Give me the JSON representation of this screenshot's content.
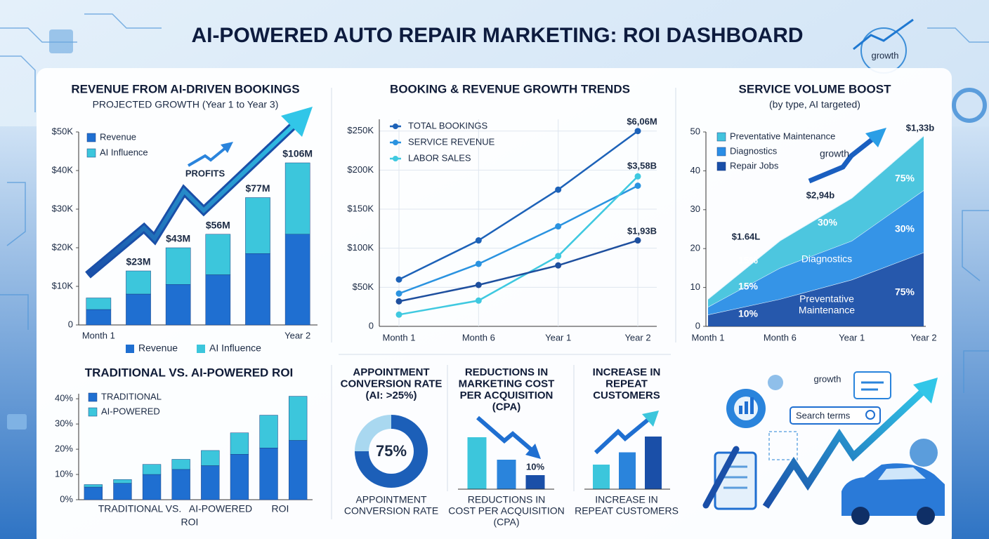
{
  "title": "AI-POWERED AUTO REPAIR MARKETING: ROI DASHBOARD",
  "decor": {
    "top_badge": "growth",
    "illustration_label": "growth",
    "search_box": "Search terms"
  },
  "chart_data": [
    {
      "type": "stacked_bar",
      "title": "REVENUE FROM AI-DRIVEN BOOKINGS",
      "subtitle": "PROJECTED GROWTH (Year 1 to Year 3)",
      "categories": [
        "Month 1",
        null,
        null,
        null,
        null,
        "Year 2"
      ],
      "series": [
        {
          "name": "Revenue",
          "color": "#1f6fd1",
          "values": [
            4,
            8,
            10.5,
            13,
            18.5,
            23.5
          ]
        },
        {
          "name": "AI Influence",
          "color": "#3cc6dc",
          "values": [
            3,
            6,
            9.5,
            10.5,
            14.5,
            18.5
          ]
        }
      ],
      "bar_annotations": [
        null,
        "$23M",
        "$43M",
        "$56M",
        "$77M",
        "$106M"
      ],
      "annotation": "PROFITS",
      "ylim": [
        0,
        50
      ],
      "yticks": [
        0,
        {
          "value": 10,
          "label": "$10K"
        },
        {
          "value": 20,
          "label": "$20K"
        },
        {
          "value": 30,
          "label": "$30K"
        },
        {
          "value": 40,
          "label": "$40K"
        },
        {
          "value": 50,
          "label": "$50K"
        }
      ],
      "legend": "top-left"
    },
    {
      "type": "line",
      "title": "BOOKING & REVENUE GROWTH TRENDS",
      "categories": [
        "Month 1",
        "Month 6",
        "Year 1",
        "Year 2"
      ],
      "series": [
        {
          "name": "TOTAL BOOKINGS",
          "color": "#1d62b8",
          "values": [
            60,
            110,
            175,
            250
          ]
        },
        {
          "name": "SERVICE REVENUE",
          "color": "#2a93e0",
          "values": [
            42,
            80,
            128,
            180
          ]
        },
        {
          "name": "LABOR SALES",
          "color": "#3fc9e0",
          "values": [
            15,
            33,
            90,
            192
          ]
        },
        {
          "name": null,
          "color": "#1e4f9e",
          "values": [
            32,
            53,
            78,
            110
          ]
        }
      ],
      "end_labels": [
        "$6,06M",
        null,
        "$3,58B",
        "$1,93B"
      ],
      "ylim": [
        0,
        265
      ],
      "yticks": [
        0,
        {
          "value": 50,
          "label": "$50K"
        },
        {
          "value": 100,
          "label": "$100K"
        },
        {
          "value": 150,
          "label": "$150K"
        },
        {
          "value": 200,
          "label": "$200K"
        },
        {
          "value": 250,
          "label": "$250K"
        }
      ],
      "grid": true,
      "legend": "top-left"
    },
    {
      "type": "stacked_area",
      "title": "SERVICE VOLUME BOOST",
      "subtitle": "(by type, AI targeted)",
      "categories": [
        "Month 1",
        "Month 6",
        "Year 1",
        "Year 2"
      ],
      "series": [
        {
          "name": "Repair Jobs",
          "color": "#1a4fa8",
          "values": [
            3,
            7,
            12,
            19
          ]
        },
        {
          "name": "Diagnostics",
          "color": "#2a8ee6",
          "values": [
            2,
            8,
            10,
            16
          ]
        },
        {
          "name": "Preventative Maintenance",
          "color": "#43c3dd",
          "values": [
            2,
            7,
            11,
            14
          ]
        }
      ],
      "area_labels": [
        "15%",
        "15%",
        "10%",
        "30%",
        "30%",
        "75%",
        "75%",
        "Diagnostics",
        "Preventative",
        "Maintenance"
      ],
      "point_labels": [
        "$1.64L",
        "$2,94b",
        "$1,33b"
      ],
      "annotation": "growth",
      "ylim": [
        0,
        50
      ],
      "yticks": [
        0,
        10,
        20,
        30,
        40,
        50
      ],
      "legend": "top-left"
    },
    {
      "type": "stacked_bar",
      "title": "TRADITIONAL VS. AI-POWERED ROI",
      "series": [
        {
          "name": "TRADITIONAL",
          "color": "#1f6fd1",
          "values": [
            5,
            6.5,
            10,
            12,
            13.5,
            18,
            20.5,
            23.5
          ]
        },
        {
          "name": "AI-POWERED",
          "color": "#3cc6dc",
          "values": [
            1,
            1.5,
            4,
            4,
            6,
            8.5,
            13,
            17.5
          ]
        }
      ],
      "x_label": [
        "TRADITIONAL VS.",
        "AI-POWERED",
        "ROI",
        "ROI"
      ],
      "ylim": [
        0,
        42
      ],
      "yticks": [
        {
          "value": 0,
          "label": "0%"
        },
        {
          "value": 10,
          "label": "10%"
        },
        {
          "value": 20,
          "label": "20%"
        },
        {
          "value": 30,
          "label": "30%"
        },
        {
          "value": 40,
          "label": "40%"
        }
      ],
      "legend": "top-left"
    },
    {
      "type": "donut",
      "title": [
        "APPOINTMENT",
        "CONVERSION RATE",
        "(AI: >25%)"
      ],
      "values": [
        75,
        25
      ],
      "value_labels": [
        "75%",
        null
      ],
      "colors": [
        "#1c5fb8",
        "#a9d8f0"
      ],
      "caption": [
        "APPOINTMENT",
        "CONVERSION RATE"
      ]
    },
    {
      "type": "bar",
      "title": [
        "REDUCTIONS IN",
        "MARKETING COST",
        "PER ACQUISITION",
        "(CPA)"
      ],
      "values": [
        37,
        21,
        10
      ],
      "value_labels": [
        null,
        null,
        "10%"
      ],
      "colors": [
        "#3cc6dc",
        "#2a84dc",
        "#1a4fa8"
      ],
      "caption": [
        "REDUCTIONS IN",
        "COST PER ACQUISITION",
        "(CPA)"
      ]
    },
    {
      "type": "bar",
      "title": [
        "INCREASE IN",
        "REPEAT",
        "CUSTOMERS"
      ],
      "values": [
        14,
        21,
        30
      ],
      "colors": [
        "#3cc6dc",
        "#2a84dc",
        "#1a4fa8"
      ],
      "caption": [
        "INCREASE IN",
        "REPEAT CUSTOMERS"
      ]
    }
  ]
}
